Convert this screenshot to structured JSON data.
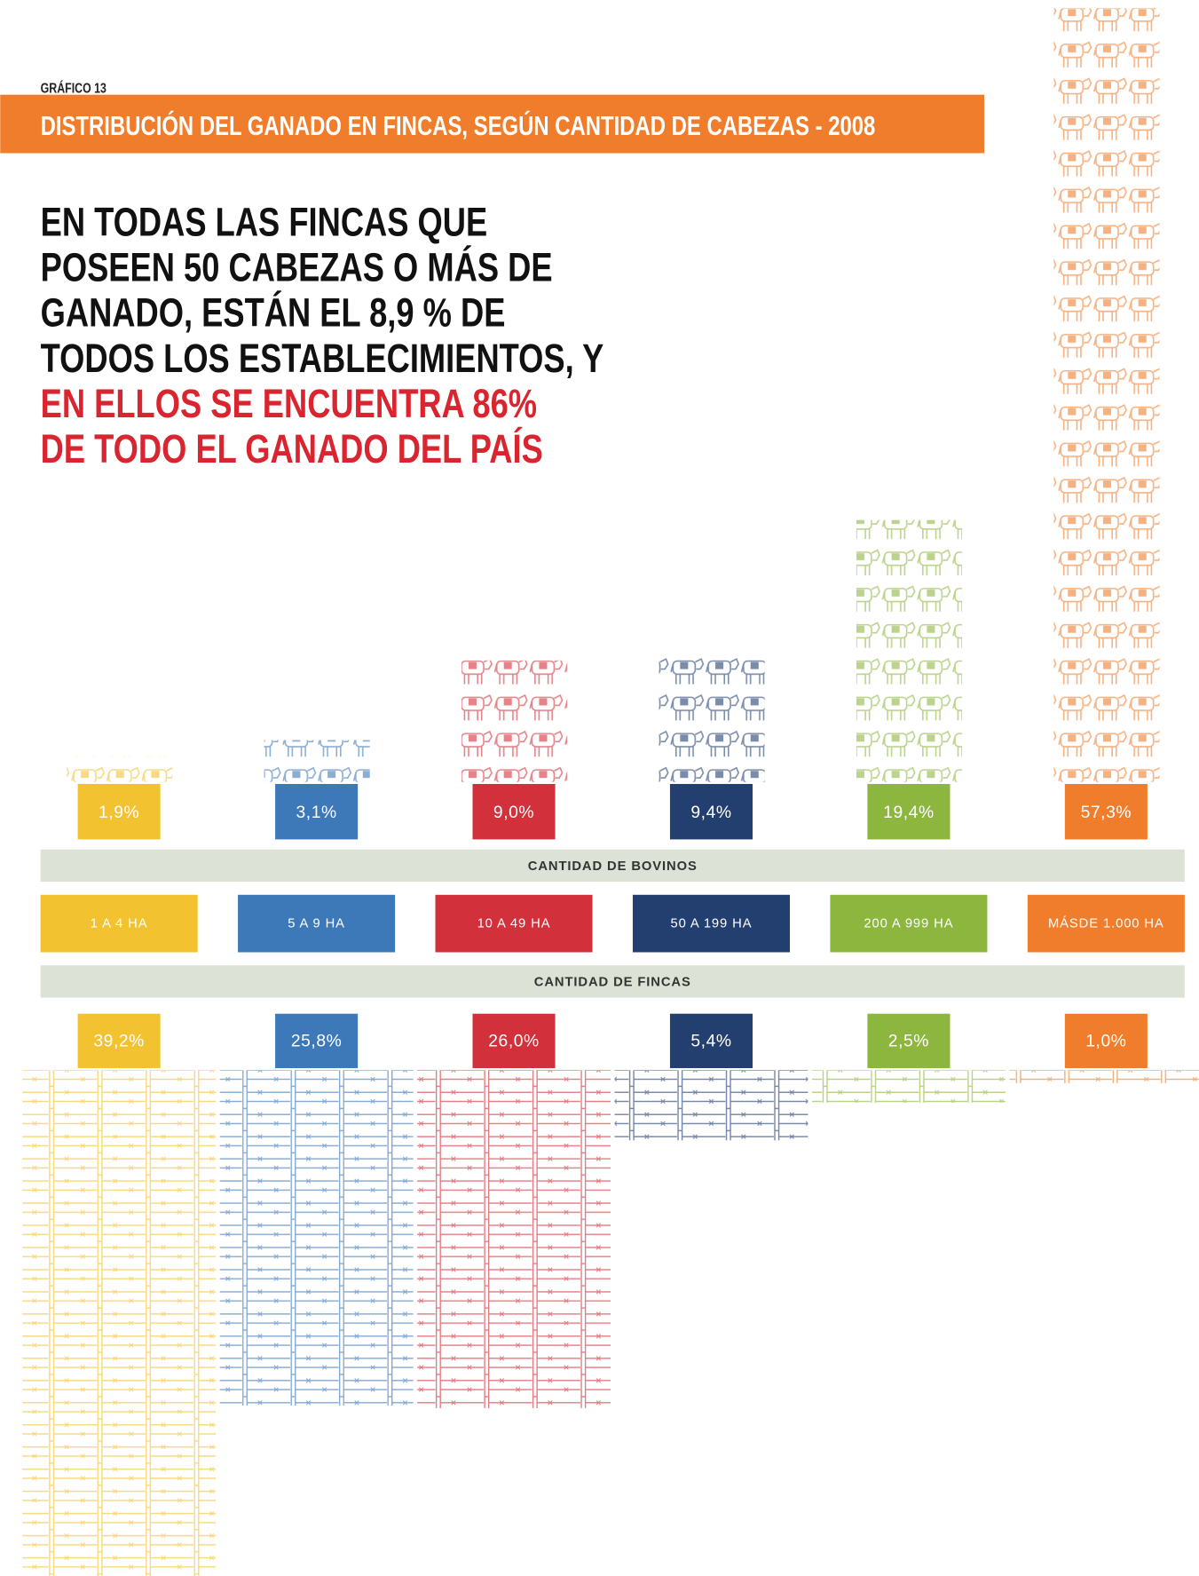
{
  "chart_data": {
    "type": "pictogram",
    "label": "GRÁFICO 13",
    "title": "DISTRIBUCIÓN DEL GANADO EN FINCAS, SEGÚN CANTIDAD DE CABEZAS - 2008",
    "statement_lines": [
      "EN TODAS LAS FINCAS QUE",
      "POSEEN 50 CABEZAS O MÁS DE",
      "GANADO, ESTÁN EL 8,9 % DE",
      "TODOS LOS ESTABLECIMIENTOS, Y"
    ],
    "highlight_lines": [
      "EN ELLOS SE ENCUENTRA 86%",
      "DE TODO EL GANADO DEL PAÍS"
    ],
    "categories": [
      "1 A 4 HA",
      "5 A 9 HA",
      "10 A 49 HA",
      "50 A 199 HA",
      "200 A 999 HA",
      "MÁSDE 1.000 HA"
    ],
    "colors": [
      "#f2c230",
      "#3d78b9",
      "#d2303a",
      "#223f70",
      "#8db63f",
      "#f07d2b"
    ],
    "series": [
      {
        "name": "CANTIDAD DE BOVINOS",
        "values": [
          1.9,
          3.1,
          9.0,
          9.4,
          19.4,
          57.3
        ],
        "value_labels": [
          "1,9%",
          "3,1%",
          "9,0%",
          "9,4%",
          "19,4%",
          "57,3%"
        ]
      },
      {
        "name": "CANTIDAD DE FINCAS",
        "values": [
          39.2,
          25.8,
          26.0,
          5.4,
          2.5,
          1.0
        ],
        "value_labels": [
          "39,2%",
          "25,8%",
          "26,0%",
          "5,4%",
          "2,5%",
          "1,0%"
        ]
      }
    ]
  }
}
